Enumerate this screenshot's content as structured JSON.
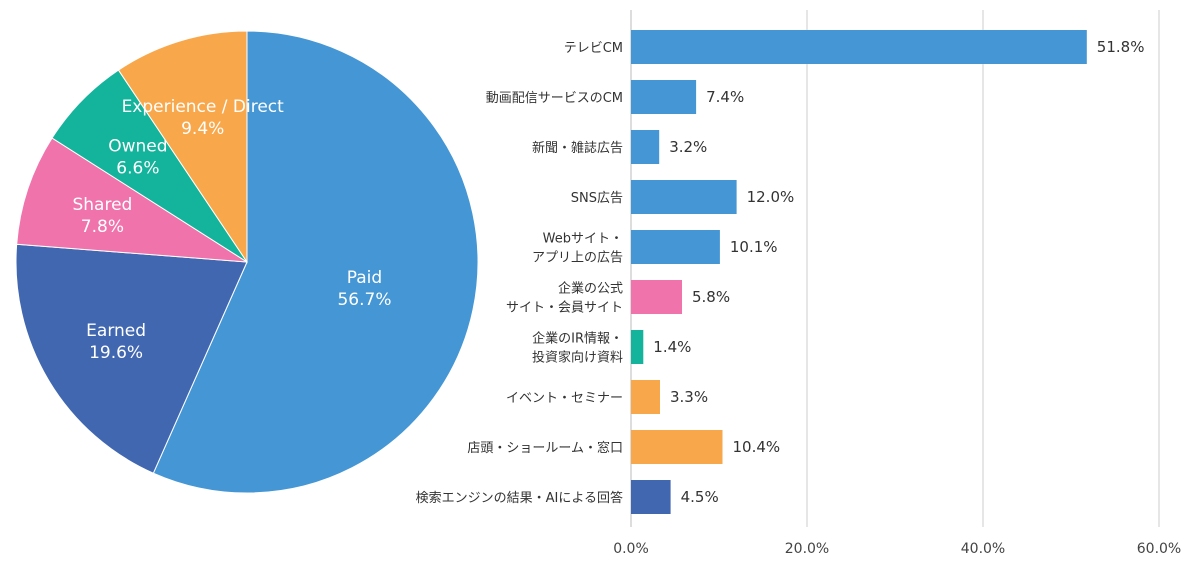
{
  "colors": {
    "paid": "#4496D4",
    "earned": "#4167B1",
    "shared": "#F073AC",
    "owned": "#14B39B",
    "experience": "#F9A74B",
    "grid": "#cccccc"
  },
  "chart_data": [
    {
      "type": "pie",
      "slices": [
        {
          "key": "paid",
          "name": "Paid",
          "value": 56.7,
          "label": "56.7%"
        },
        {
          "key": "earned",
          "name": "Earned",
          "value": 19.6,
          "label": "19.6%"
        },
        {
          "key": "shared",
          "name": "Shared",
          "value": 7.8,
          "label": "7.8%"
        },
        {
          "key": "owned",
          "name": "Owned",
          "value": 6.6,
          "label": "6.6%"
        },
        {
          "key": "experience",
          "name": "Experience / Direct",
          "value": 9.4,
          "label": "9.4%"
        }
      ]
    },
    {
      "type": "bar",
      "orientation": "horizontal",
      "categories": [
        [
          "テレビCM"
        ],
        [
          "動画配信サービスのCM"
        ],
        [
          "新聞・雑誌広告"
        ],
        [
          "SNS広告"
        ],
        [
          "Webサイト・",
          "アプリ上の広告"
        ],
        [
          "企業の公式",
          "サイト・会員サイト"
        ],
        [
          "企業のIR情報・",
          "投資家向け資料"
        ],
        [
          "イベント・セミナー"
        ],
        [
          "店頭・ショールーム・窓口"
        ],
        [
          "検索エンジンの結果・AIによる回答"
        ]
      ],
      "values": [
        51.8,
        7.4,
        3.2,
        12.0,
        10.1,
        5.8,
        1.4,
        3.3,
        10.4,
        4.5
      ],
      "value_labels": [
        "51.8%",
        "7.4%",
        "3.2%",
        "12.0%",
        "10.1%",
        "5.8%",
        "1.4%",
        "3.3%",
        "10.4%",
        "4.5%"
      ],
      "groups": [
        "paid",
        "paid",
        "paid",
        "paid",
        "paid",
        "shared",
        "owned",
        "experience",
        "experience",
        "earned"
      ],
      "xlim": [
        0,
        60
      ],
      "xticks": [
        0,
        20,
        40,
        60
      ],
      "xtick_labels": [
        "0.0%",
        "20.0%",
        "40.0%",
        "60.0%"
      ],
      "grid": true
    }
  ]
}
